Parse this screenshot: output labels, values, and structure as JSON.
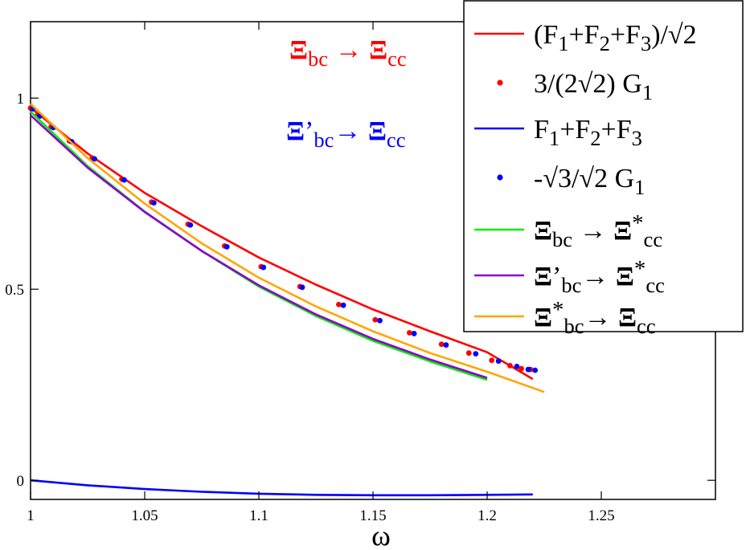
{
  "chart_data": {
    "type": "line",
    "xlabel": "ω",
    "ylabel": "",
    "xlim": [
      1.0,
      1.3
    ],
    "ylim": [
      -0.05,
      1.2
    ],
    "x_ticks": [
      "1",
      "1.05",
      "1.1",
      "1.15",
      "1.2",
      "1.25"
    ],
    "x_tick_values": [
      1.0,
      1.05,
      1.1,
      1.15,
      1.2,
      1.25
    ],
    "y_ticks": [
      "0",
      "0.5",
      "1"
    ],
    "y_tick_values": [
      0,
      0.5,
      1.0
    ],
    "grid": false,
    "legend_position": "top-right",
    "colors": {
      "red": "#ff0000",
      "blue": "#0000ff",
      "green": "#00ee00",
      "purple": "#8b00cc",
      "orange": "#ffa500"
    },
    "series": [
      {
        "name": "(F1+F2+F3)/√2",
        "legend_parts": [
          [
            "(F",
            ""
          ],
          [
            "1",
            "sub"
          ],
          [
            "+F",
            ""
          ],
          [
            "2",
            "sub"
          ],
          [
            "+F",
            ""
          ],
          [
            "3",
            "sub"
          ],
          [
            ")/√2",
            ""
          ]
        ],
        "style": "line",
        "color": "#ff0000",
        "x": [
          1.0,
          1.025,
          1.05,
          1.075,
          1.1,
          1.125,
          1.15,
          1.175,
          1.2,
          1.22
        ],
        "y": [
          0.975,
          0.855,
          0.752,
          0.665,
          0.583,
          0.512,
          0.447,
          0.39,
          0.335,
          0.265
        ]
      },
      {
        "name": "3/(2√2) G1",
        "legend_parts": [
          [
            "3/(2√2) G",
            ""
          ],
          [
            "1",
            "sub"
          ]
        ],
        "style": "dots",
        "color": "#ff0000",
        "x": [
          1.0,
          1.003,
          1.009,
          1.017,
          1.027,
          1.04,
          1.053,
          1.069,
          1.085,
          1.101,
          1.118,
          1.135,
          1.151,
          1.166,
          1.18,
          1.192,
          1.202,
          1.21,
          1.215,
          1.219
        ],
        "y": [
          0.974,
          0.955,
          0.925,
          0.888,
          0.843,
          0.788,
          0.728,
          0.67,
          0.613,
          0.559,
          0.507,
          0.46,
          0.42,
          0.386,
          0.356,
          0.333,
          0.314,
          0.3,
          0.292,
          0.29
        ]
      },
      {
        "name": "F1+F2+F3",
        "legend_parts": [
          [
            "F",
            ""
          ],
          [
            "1",
            "sub"
          ],
          [
            "+F",
            ""
          ],
          [
            "2",
            "sub"
          ],
          [
            "+F",
            ""
          ],
          [
            "3",
            "sub"
          ]
        ],
        "style": "line",
        "color": "#0000ff",
        "x": [
          1.0,
          1.025,
          1.05,
          1.075,
          1.1,
          1.125,
          1.15,
          1.175,
          1.2,
          1.22
        ],
        "y": [
          0.0,
          -0.013,
          -0.023,
          -0.03,
          -0.035,
          -0.038,
          -0.039,
          -0.039,
          -0.038,
          -0.037
        ]
      },
      {
        "name": "-√3/√2 G1",
        "legend_parts": [
          [
            "-√3/√2  G",
            ""
          ],
          [
            "1",
            "sub"
          ]
        ],
        "style": "dots",
        "color": "#0000ff",
        "x": [
          1.001,
          1.004,
          1.01,
          1.018,
          1.028,
          1.041,
          1.054,
          1.07,
          1.086,
          1.102,
          1.119,
          1.137,
          1.153,
          1.168,
          1.182,
          1.195,
          1.205,
          1.213,
          1.218,
          1.221
        ],
        "y": [
          0.972,
          0.953,
          0.923,
          0.886,
          0.841,
          0.786,
          0.726,
          0.668,
          0.611,
          0.557,
          0.505,
          0.458,
          0.418,
          0.384,
          0.354,
          0.331,
          0.312,
          0.298,
          0.29,
          0.288
        ]
      },
      {
        "name": "Ξbc → Ξ*cc",
        "legend_parts": [
          [
            "Ξ",
            "bold"
          ],
          [
            "bc",
            "sub"
          ],
          [
            " → ",
            ""
          ],
          [
            "Ξ",
            "bold"
          ],
          [
            "*",
            "sup"
          ],
          [
            "cc",
            "sub"
          ]
        ],
        "style": "line",
        "color": "#00ee00",
        "x": [
          1.0,
          1.025,
          1.05,
          1.075,
          1.1,
          1.125,
          1.15,
          1.175,
          1.2
        ],
        "y": [
          0.965,
          0.822,
          0.703,
          0.6,
          0.507,
          0.43,
          0.365,
          0.311,
          0.263
        ]
      },
      {
        "name": "Ξ'bc → Ξ*cc",
        "legend_parts": [
          [
            "Ξ",
            "bold"
          ],
          [
            "’",
            ""
          ],
          [
            "bc",
            "sub"
          ],
          [
            "→ ",
            ""
          ],
          [
            "Ξ",
            "bold"
          ],
          [
            "*",
            "sup"
          ],
          [
            "cc",
            "sub"
          ]
        ],
        "style": "line",
        "color": "#8b00cc",
        "x": [
          1.0,
          1.025,
          1.05,
          1.075,
          1.1,
          1.125,
          1.15,
          1.175,
          1.2
        ],
        "y": [
          0.955,
          0.818,
          0.702,
          0.6,
          0.51,
          0.434,
          0.37,
          0.316,
          0.268
        ]
      },
      {
        "name": "Ξ*bc → Ξcc",
        "legend_parts": [
          [
            "Ξ",
            "bold"
          ],
          [
            "*",
            "sup"
          ],
          [
            "bc",
            "sub"
          ],
          [
            "→ ",
            ""
          ],
          [
            "Ξ",
            "bold"
          ],
          [
            "cc",
            "sub"
          ]
        ],
        "style": "line",
        "color": "#ffa500",
        "x": [
          1.0,
          1.025,
          1.05,
          1.075,
          1.1,
          1.125,
          1.15,
          1.175,
          1.2,
          1.225
        ],
        "y": [
          0.985,
          0.843,
          0.724,
          0.62,
          0.53,
          0.455,
          0.39,
          0.333,
          0.284,
          0.231
        ]
      }
    ],
    "annotations": [
      {
        "text": "Ξbc → Ξcc",
        "color": "#ff0000",
        "parts": [
          [
            "Ξ",
            "bold"
          ],
          [
            "bc",
            "sub"
          ],
          [
            " → ",
            ""
          ],
          [
            "Ξ",
            "bold"
          ],
          [
            "cc",
            "sub"
          ]
        ]
      },
      {
        "text": "Ξ'bc → Ξcc",
        "color": "#0000ff",
        "parts": [
          [
            "Ξ",
            "bold"
          ],
          [
            "’",
            ""
          ],
          [
            "bc",
            "sub"
          ],
          [
            "→ ",
            ""
          ],
          [
            "Ξ",
            "bold"
          ],
          [
            "cc",
            "sub"
          ]
        ]
      }
    ]
  }
}
